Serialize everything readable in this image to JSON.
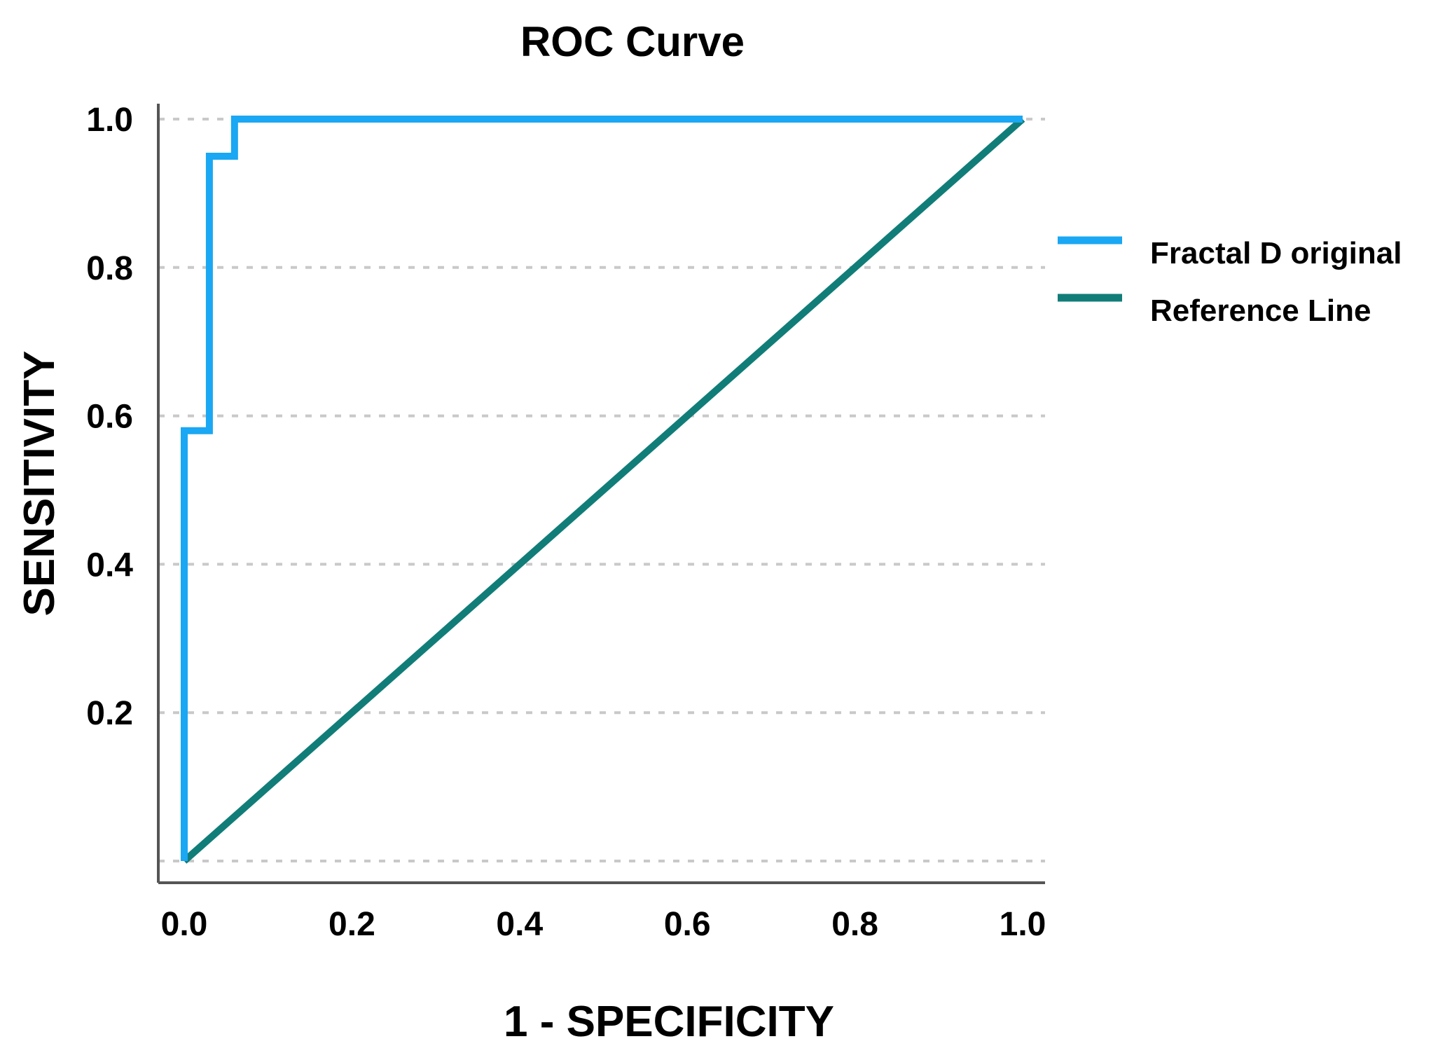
{
  "chart_data": {
    "type": "line",
    "title": "ROC Curve",
    "xlabel": "1 - SPECIFICITY",
    "ylabel": "SENSITIVITY",
    "xlim": [
      0.0,
      1.0
    ],
    "ylim": [
      0.0,
      1.0
    ],
    "grid": "horizontal dashed",
    "x_ticks": [
      "0.0",
      "0.2",
      "0.4",
      "0.6",
      "0.8",
      "1.0"
    ],
    "y_ticks": [
      "0.2",
      "0.4",
      "0.6",
      "0.8",
      "1.0"
    ],
    "legend_position": "right",
    "series": [
      {
        "name": "Fractal D original",
        "color": "#1aa7f3",
        "x": [
          0.0,
          0.0,
          0.03,
          0.03,
          0.06,
          0.06,
          1.0
        ],
        "y": [
          0.0,
          0.58,
          0.58,
          0.95,
          0.95,
          1.0,
          1.0
        ]
      },
      {
        "name": "Reference Line",
        "color": "#117d78",
        "x": [
          0.0,
          1.0
        ],
        "y": [
          0.0,
          1.0
        ]
      }
    ]
  }
}
